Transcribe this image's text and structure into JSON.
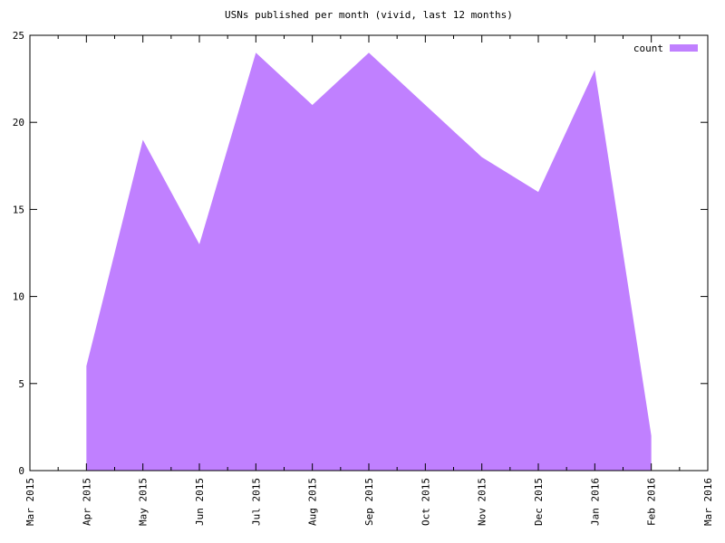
{
  "chart_data": {
    "type": "area",
    "title": "USNs published per month (vivid, last 12 months)",
    "categories": [
      "Mar 2015",
      "Apr 2015",
      "May 2015",
      "Jun 2015",
      "Jul 2015",
      "Aug 2015",
      "Sep 2015",
      "Oct 2015",
      "Nov 2015",
      "Dec 2015",
      "Jan 2016",
      "Feb 2016",
      "Mar 2016"
    ],
    "series": [
      {
        "name": "count",
        "color": "#c080ff",
        "values": [
          null,
          6,
          19,
          13,
          24,
          21,
          24,
          21,
          18,
          16,
          23,
          2,
          null
        ]
      }
    ],
    "ylim": [
      0,
      25
    ],
    "yticks": [
      0,
      5,
      10,
      15,
      20,
      25
    ],
    "legend": "top-right"
  }
}
